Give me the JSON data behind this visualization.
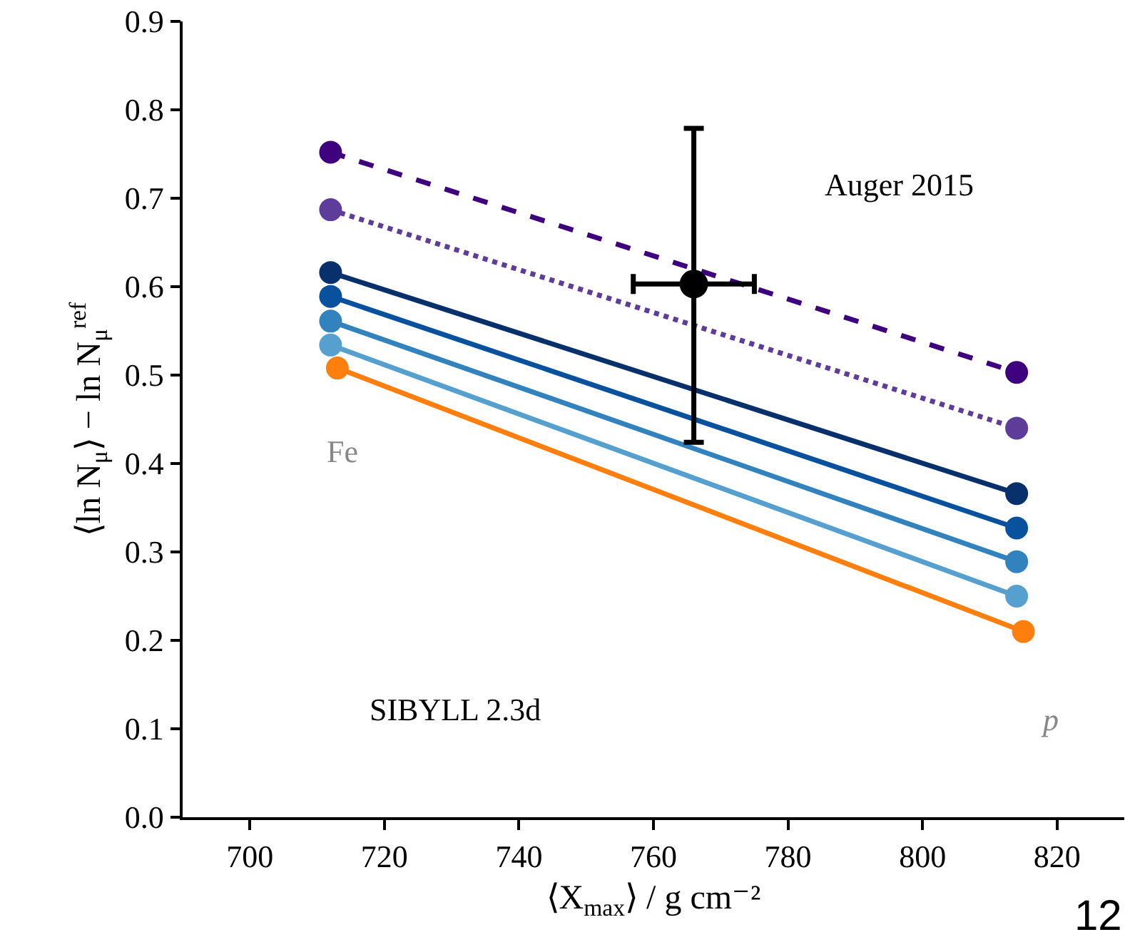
{
  "chart_data": {
    "type": "line",
    "xlabel": "⟨X$_{max}$⟩ / g cm⁻²",
    "ylabel": "⟨ln N$_{μ}$⟩ − ln N$_{μ}$$^{ref}$",
    "xlim": [
      690,
      830
    ],
    "xticks": [
      700,
      720,
      740,
      760,
      780,
      800,
      820
    ],
    "ylim": [
      0,
      0.9
    ],
    "yticks": [
      {
        "value": 0,
        "label": "0.0"
      },
      0.1,
      0.2,
      0.3,
      0.4,
      0.5,
      0.6,
      0.7,
      0.8,
      0.9
    ],
    "grid": false,
    "marker": "circle",
    "series": [
      {
        "color": "#3f007d",
        "x": [
          712,
          814
        ],
        "values": [
          0.752,
          0.503
        ],
        "line_style": "dashed"
      },
      {
        "color": "#5e3c99",
        "x": [
          712,
          814
        ],
        "values": [
          0.687,
          0.44
        ],
        "line_style": "dotted"
      },
      {
        "color": "#08306b",
        "x": [
          712,
          814
        ],
        "values": [
          0.616,
          0.366
        ],
        "line_style": "solid"
      },
      {
        "color": "#08519c",
        "x": [
          712,
          814
        ],
        "values": [
          0.589,
          0.327
        ],
        "line_style": "solid"
      },
      {
        "color": "#3182bd",
        "x": [
          712,
          814
        ],
        "values": [
          0.561,
          0.289
        ],
        "line_style": "solid"
      },
      {
        "color": "#56a0d0",
        "x": [
          712,
          814
        ],
        "values": [
          0.534,
          0.25
        ],
        "line_style": "solid"
      },
      {
        "color": "#ff7f0e",
        "x": [
          713,
          815
        ],
        "values": [
          0.508,
          0.21
        ],
        "line_style": "solid"
      },
      {
        "type": "scatter",
        "color": "#000000",
        "x": [
          766
        ],
        "values": [
          0.603
        ],
        "errors": [
          [
            0.424,
            0.779
          ]
        ],
        "xerrors": [
          [
            757,
            775
          ]
        ]
      }
    ],
    "annotations": [
      "Auger 2015",
      "Fe",
      "SIBYLL 2.3d",
      "p",
      "12"
    ]
  }
}
